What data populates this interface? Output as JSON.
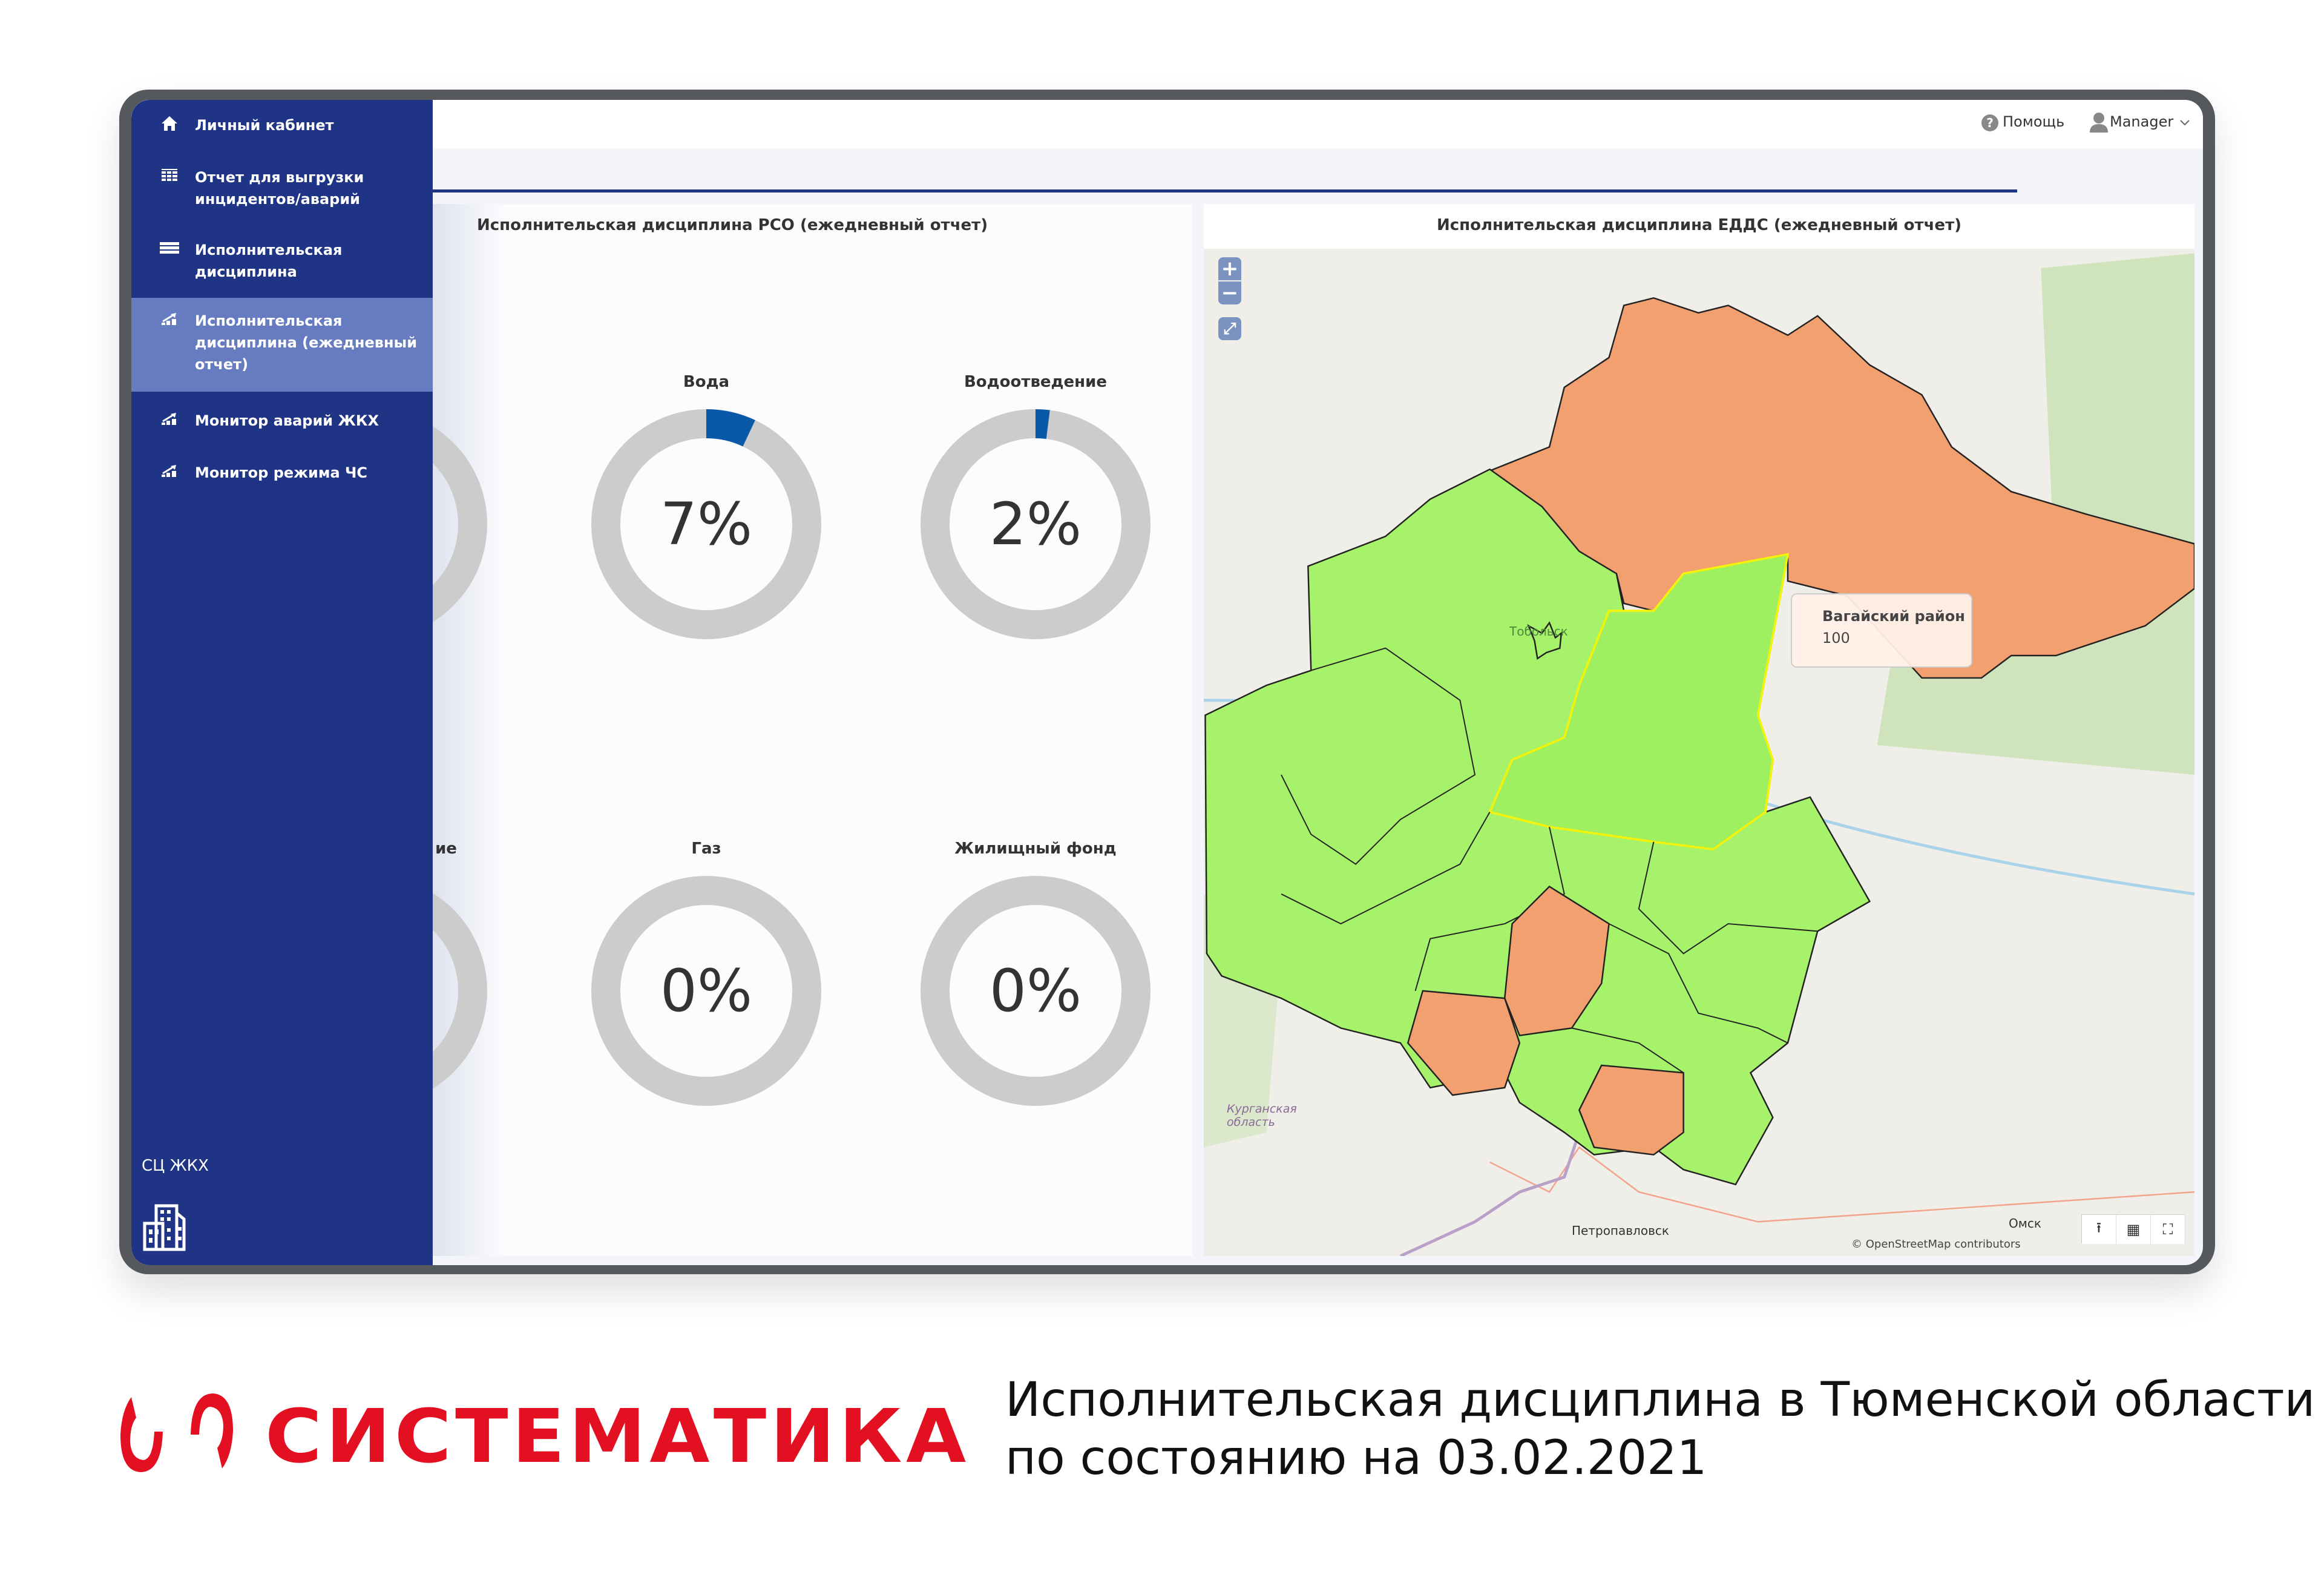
{
  "header": {
    "help_label": "Помощь",
    "user_label": "Manager",
    "icons": [
      "question-circle-icon",
      "user-icon",
      "chevron-down-icon"
    ]
  },
  "sidebar": {
    "items": [
      {
        "label": "Личный кабинет",
        "icon": "home-icon"
      },
      {
        "label": "Отчет для выгрузки инцидентов/аварий",
        "icon": "table-icon"
      },
      {
        "label": "Исполнительская дисциплина",
        "icon": "list-icon"
      },
      {
        "label": "Исполнительская дисциплина (ежедневный отчет)",
        "icon": "chart-icon",
        "active": true
      },
      {
        "label": "Монитор аварий ЖКХ",
        "icon": "chart-icon"
      },
      {
        "label": "Монитор режима ЧС",
        "icon": "chart-icon"
      }
    ],
    "footer_label": "СЦ ЖКХ",
    "footer_icon": "buildings-icon",
    "colors": {
      "bg": "#1f3485",
      "active": "#677cc0"
    }
  },
  "left_panel": {
    "title": "Исполнительская дисциплина РСО (ежедневный отчет)"
  },
  "chart_data": {
    "type": "pie",
    "subtype": "donut",
    "colors": {
      "fill": "#0a58a8",
      "track": "#cccccc"
    },
    "items": [
      {
        "label": "",
        "value": null,
        "partial": true
      },
      {
        "label": "Вода",
        "value": 7,
        "display": "7%"
      },
      {
        "label": "Водоотведение",
        "value": 2,
        "display": "2%"
      },
      {
        "label": "ие",
        "value": null,
        "partial": true
      },
      {
        "label": "Газ",
        "value": 0,
        "display": "0%"
      },
      {
        "label": "Жилищный фонд",
        "value": 0,
        "display": "0%"
      }
    ]
  },
  "right_panel": {
    "title": "Исполнительская дисциплина ЕДДС (ежедневный отчет)",
    "map": {
      "labels": {
        "tobolsk": "Тобольск",
        "kurgan": "Курганская область",
        "petropavlovsk": "Петропавловск",
        "omsk": "Омск",
        "attribution": "© OpenStreetMap contributors"
      },
      "tooltip": {
        "title": "Вагайский район",
        "value": "100"
      },
      "colors": {
        "ok": "#a6f26a",
        "bad": "#f2a070",
        "highlight": "#f2f20a"
      },
      "controls": [
        "zoom-in-icon",
        "zoom-out-icon",
        "expand-icon",
        "export-icon",
        "grid-icon",
        "fullscreen-icon"
      ]
    }
  },
  "footer": {
    "brand": "СИСТЕМАТИКА",
    "caption_line1": "Исполнительская дисциплина в Тюменской области",
    "caption_line2": "по состоянию на 03.02.2021"
  }
}
